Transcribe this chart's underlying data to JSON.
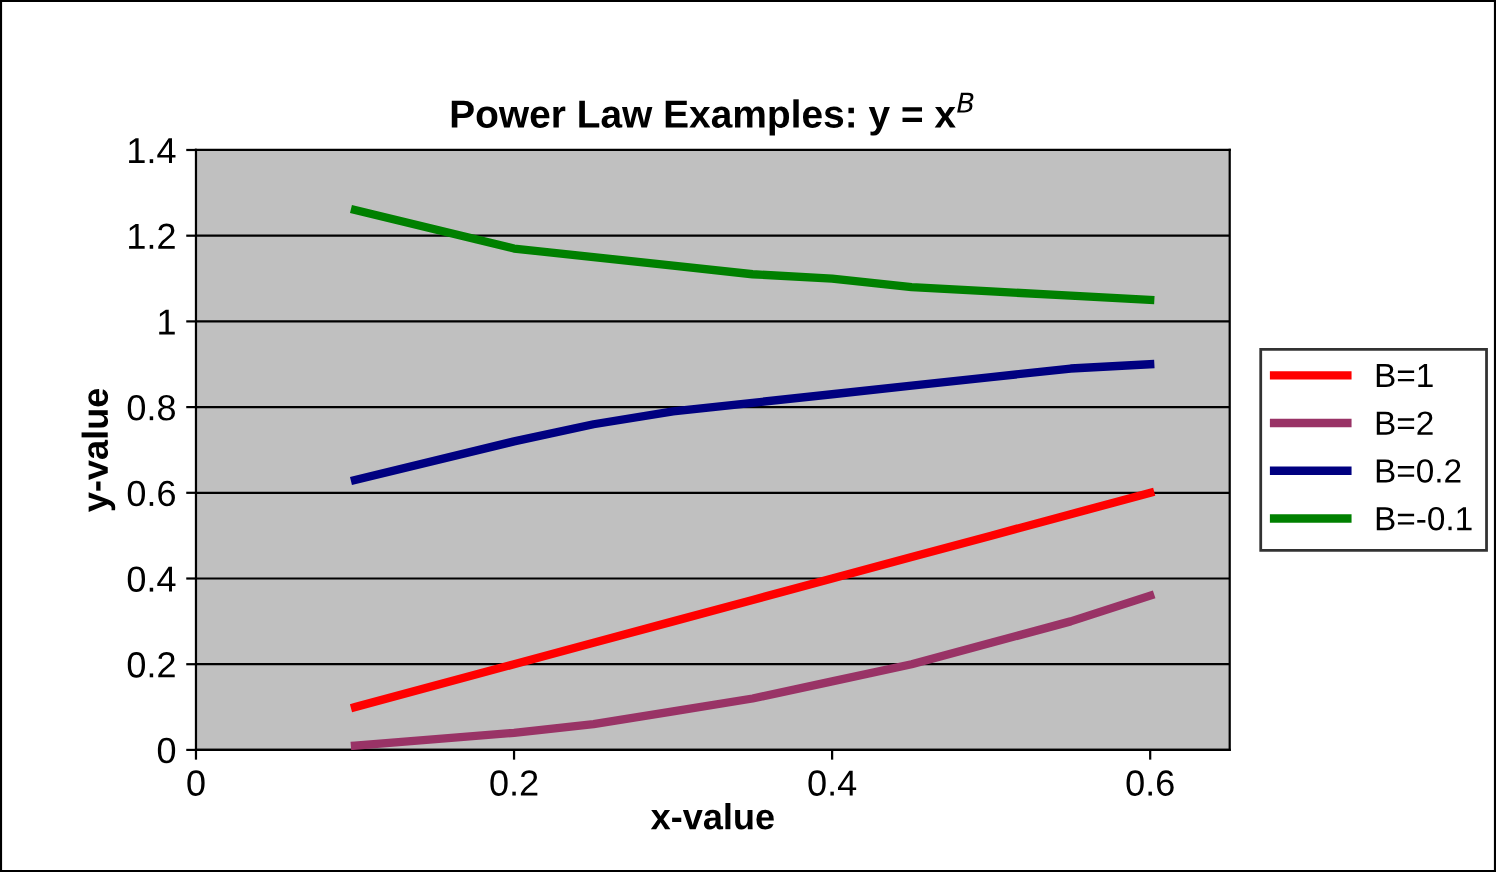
{
  "chart_data": {
    "type": "line",
    "title": "Power Law Examples: y = x$^{B}$",
    "xlabel": "x-value",
    "ylabel": "y-value",
    "x": [
      0.1,
      0.2,
      0.25,
      0.3,
      0.35,
      0.4,
      0.45,
      0.5,
      0.55,
      0.6
    ],
    "series": [
      {
        "name": "B=1",
        "color": "#ff0000",
        "values": [
          0.1,
          0.2,
          0.25,
          0.3,
          0.35,
          0.4,
          0.45,
          0.5,
          0.55,
          0.6
        ]
      },
      {
        "name": "B=2",
        "color": "#993366",
        "values": [
          0.01,
          0.04,
          0.06,
          0.09,
          0.12,
          0.16,
          0.2,
          0.25,
          0.3,
          0.36
        ]
      },
      {
        "name": "B=0.2",
        "color": "#000080",
        "values": [
          0.63,
          0.72,
          0.76,
          0.79,
          0.81,
          0.83,
          0.85,
          0.87,
          0.89,
          0.9
        ]
      },
      {
        "name": "B=-0.1",
        "color": "#008000",
        "values": [
          1.26,
          1.17,
          1.15,
          1.13,
          1.11,
          1.1,
          1.08,
          1.07,
          1.06,
          1.05
        ]
      }
    ],
    "xlim": [
      0,
      0.65
    ],
    "xticks": [
      0,
      0.2,
      0.4,
      0.6
    ],
    "ylim": [
      0,
      1.4
    ],
    "yticks": [
      0,
      0.2,
      0.4,
      0.6,
      0.8,
      1,
      1.2,
      1.4
    ],
    "grid": "y",
    "legend": "right",
    "marker": "none",
    "line_style": "solid"
  }
}
